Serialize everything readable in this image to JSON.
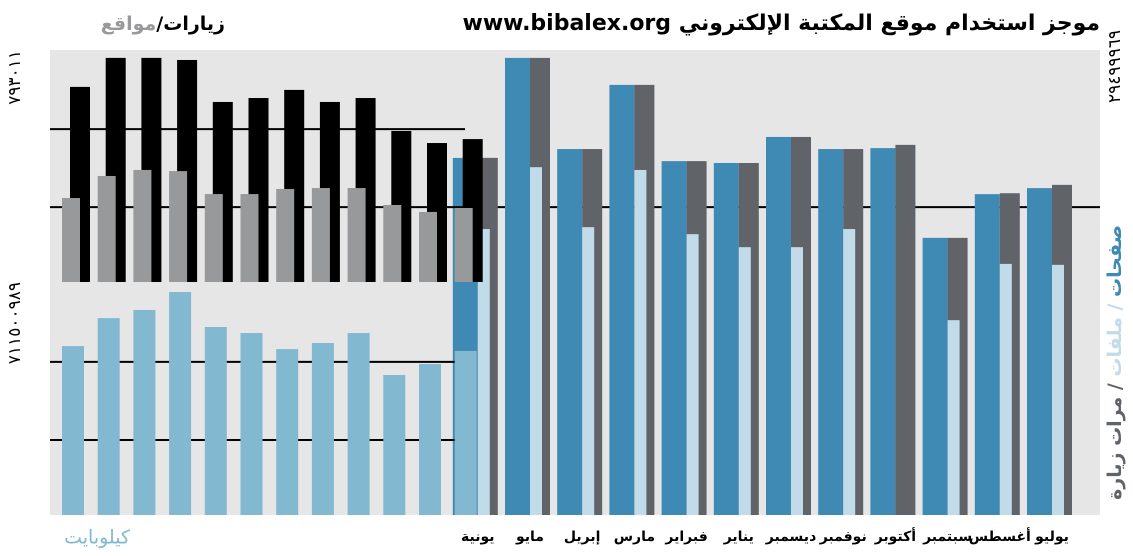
{
  "chart_data": [
    {
      "type": "bar",
      "title": "موجز استخدام موقع المكتبة الإلكتروني www.bibalex.org",
      "ylabel": "٢٩٤٩٩٩٦٩",
      "categories": [
        "يوليو",
        "أغسطس",
        "سبتمبر",
        "أكتوبر",
        "نوفمبر",
        "ديسمبر",
        "يناير",
        "فبراير",
        "مارس",
        "إبريل",
        "مايو",
        "يونية"
      ],
      "series": [
        {
          "name": "صفحات",
          "color": "#3f8ab4",
          "values": [
            70.3,
            69.0,
            59.6,
            78.9,
            78.7,
            81.3,
            75.7,
            76.1,
            92.5,
            78.7,
            98.3,
            76.8
          ]
        },
        {
          "name": "مرات زيارة",
          "color": "#606468",
          "values": [
            71.0,
            69.2,
            59.6,
            79.6,
            78.7,
            81.3,
            75.7,
            76.1,
            92.5,
            78.7,
            98.3,
            76.8
          ]
        },
        {
          "name": "ملفات",
          "color": "#c2dbe8",
          "values": [
            53.8,
            54.0,
            41.9,
            null,
            61.5,
            57.6,
            57.6,
            60.4,
            74.2,
            61.9,
            74.8,
            61.5
          ]
        }
      ],
      "ylim": [
        0,
        100
      ],
      "grid_values": [
        66.2
      ]
    },
    {
      "type": "bar",
      "ylabel": "٧٩٣٠١١",
      "series": [
        {
          "name": "زيارات/",
          "color": "#000000",
          "values": [
            84.1,
            96.6,
            96.6,
            95.7,
            77.6,
            79.3,
            82.8,
            77.6,
            79.3,
            65.1,
            59.9,
            61.6
          ]
        },
        {
          "name": "مواقع",
          "color": "#98999b",
          "values": [
            36.2,
            45.7,
            48.3,
            47.8,
            37.9,
            37.9,
            40.1,
            40.5,
            40.5,
            33.2,
            30.2,
            31.9
          ]
        }
      ],
      "ylim": [
        0,
        100
      ],
      "grid_values": [
        32.3,
        65.9
      ]
    },
    {
      "type": "bar",
      "ylabel": "٧١١٥٠٠٩٨٩",
      "series": [
        {
          "name": "كيلوبايت",
          "color": "#82b8d0",
          "values": [
            72.5,
            84.5,
            88.0,
            95.7,
            80.7,
            78.1,
            71.2,
            73.8,
            78.1,
            60.1,
            64.8,
            70.4
          ]
        }
      ],
      "ylim": [
        0,
        100
      ],
      "grid_values": [
        32.2,
        65.7
      ]
    }
  ]
}
